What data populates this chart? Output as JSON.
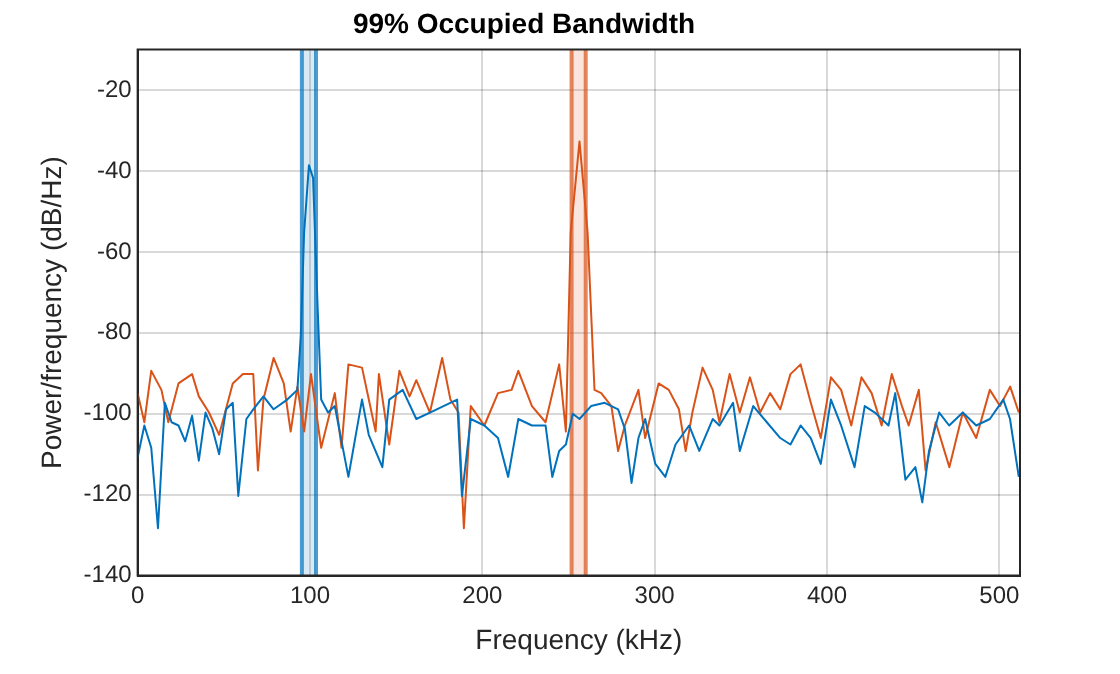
{
  "chart_data": {
    "type": "line",
    "title": "99% Occupied Bandwidth",
    "xlabel": "Frequency (kHz)",
    "ylabel": "Power/frequency (dB/Hz)",
    "xlim": [
      0,
      512
    ],
    "xticks": [
      0,
      100,
      200,
      300,
      400,
      500
    ],
    "ylim": [
      -140,
      -10
    ],
    "yticks": [
      -140,
      -120,
      -100,
      -80,
      -60,
      -40,
      -20
    ],
    "grid": true,
    "bands": [
      {
        "axis": "x",
        "from": 95.3,
        "to": 103.5,
        "color": "#0072bd"
      },
      {
        "axis": "x",
        "from": 251.8,
        "to": 260,
        "color": "#d95319"
      }
    ],
    "ref_lines": [
      {
        "axis": "x",
        "value": 95.3,
        "color": "#0072bd"
      },
      {
        "axis": "x",
        "value": 103.5,
        "color": "#0072bd"
      },
      {
        "axis": "x",
        "value": 251.8,
        "color": "#d95319"
      },
      {
        "axis": "x",
        "value": 260,
        "color": "#d95319"
      }
    ],
    "series": [
      {
        "color": "#0072bd",
        "x": [
          0,
          3.9,
          7.9,
          11.8,
          15.8,
          19.7,
          23.7,
          27.6,
          31.6,
          35.5,
          39.4,
          43.4,
          47.3,
          51.3,
          55.2,
          58.4,
          63.1,
          67.1,
          73,
          78.9,
          86.8,
          92.7,
          94.7,
          96.6,
          99.4,
          101.8,
          104.5,
          106.5,
          110.5,
          114.4,
          122.3,
          130.2,
          134.1,
          142,
          146,
          153.8,
          161.7,
          169.6,
          177.5,
          185.4,
          188.2,
          193.3,
          201.2,
          209.1,
          215,
          220.9,
          228.8,
          236.7,
          240.6,
          244.6,
          248.5,
          252.5,
          256.4,
          263.1,
          271,
          278.8,
          282.7,
          286.6,
          290.6,
          294.5,
          300.4,
          306.2,
          312.1,
          320,
          325.9,
          333.7,
          337.6,
          345.5,
          349.4,
          357.2,
          365.1,
          372.9,
          378.8,
          384.7,
          390.6,
          396.4,
          402.3,
          408.2,
          416,
          421.9,
          427.8,
          435.7,
          439.6,
          445.5,
          451.3,
          455.3,
          459.2,
          465.1,
          470.9,
          478.8,
          486.6,
          494.5,
          502.3,
          506.2,
          511.3
        ],
        "values": [
          -110.8,
          -102.9,
          -108.4,
          -128.3,
          -97.3,
          -102.1,
          -102.9,
          -106.8,
          -100.5,
          -111.6,
          -99.7,
          -103.7,
          -110,
          -98.9,
          -97.3,
          -120.3,
          -101.3,
          -98.9,
          -95.7,
          -98.9,
          -96.5,
          -94.1,
          -80.6,
          -55.2,
          -38.6,
          -41.7,
          -74.3,
          -96.5,
          -99.7,
          -98.1,
          -115.6,
          -96.5,
          -105.2,
          -113.2,
          -96.5,
          -94.1,
          -101.3,
          -99.7,
          -98.1,
          -96.5,
          -120.3,
          -101.3,
          -102.9,
          -106,
          -115.6,
          -101.3,
          -102.9,
          -102.9,
          -115.6,
          -109.2,
          -107.6,
          -100,
          -101.3,
          -98.1,
          -97.3,
          -98.9,
          -103.7,
          -117.1,
          -106,
          -101.3,
          -112.4,
          -115.6,
          -107.6,
          -102.9,
          -109.2,
          -101.3,
          -102.9,
          -97.3,
          -109.2,
          -98.1,
          -102.1,
          -106,
          -107.6,
          -102.9,
          -106,
          -112.4,
          -96.5,
          -102.9,
          -113.2,
          -98.1,
          -99.7,
          -102.9,
          -94.9,
          -116.3,
          -113.2,
          -121.9,
          -109.2,
          -99.7,
          -102.9,
          -99.7,
          -102.9,
          -101.3,
          -96.5,
          -101.3,
          -115.6
        ]
      },
      {
        "color": "#d95319",
        "x": [
          0,
          3.9,
          7.9,
          13.8,
          17.8,
          23.7,
          31.6,
          35.5,
          41.4,
          47.3,
          55.2,
          61.1,
          67.1,
          69.8,
          73,
          78.9,
          84.8,
          88.8,
          92.7,
          96.6,
          100.6,
          106.5,
          114.4,
          118.3,
          122.3,
          130.2,
          138.1,
          140,
          146,
          151.9,
          157.8,
          161.7,
          169.6,
          176.7,
          181.5,
          186.2,
          189.3,
          193.3,
          201.2,
          209.1,
          217,
          220.9,
          228.8,
          236.7,
          244.6,
          248.5,
          251.3,
          256.4,
          261.1,
          265.1,
          269,
          274.9,
          278.8,
          282.7,
          290.6,
          294.5,
          302.3,
          308.2,
          314.1,
          318,
          321.9,
          327.8,
          333.7,
          337.6,
          343.5,
          349.4,
          355.3,
          361.2,
          367,
          372.9,
          378.8,
          384.7,
          390.6,
          396.4,
          402.3,
          408.2,
          414.1,
          420,
          425.9,
          431.7,
          437.6,
          443.5,
          447.4,
          453.3,
          457.2,
          463.1,
          471,
          478.8,
          486.6,
          494.5,
          500.4,
          506.3,
          511.3
        ],
        "values": [
          -94.9,
          -102.1,
          -89.4,
          -94.1,
          -102.1,
          -92.5,
          -90.2,
          -95.7,
          -99.7,
          -105.2,
          -92.5,
          -90.2,
          -90.2,
          -114,
          -96.5,
          -86.2,
          -92.5,
          -104.4,
          -93.3,
          -104.4,
          -90.2,
          -108.4,
          -94.9,
          -108.4,
          -87.8,
          -88.6,
          -104.4,
          -90.2,
          -107.6,
          -89.4,
          -95.7,
          -91.7,
          -99.7,
          -86.2,
          -96.5,
          -99.7,
          -128.3,
          -98.1,
          -102.9,
          -94.9,
          -94.1,
          -89.4,
          -98.1,
          -102.1,
          -87.8,
          -104.4,
          -55.2,
          -32.7,
          -55.2,
          -94.1,
          -94.9,
          -98.1,
          -109.2,
          -102.9,
          -94.1,
          -106,
          -92.5,
          -94.1,
          -98.9,
          -109.2,
          -99.7,
          -88.6,
          -94.1,
          -102.1,
          -90.2,
          -99.7,
          -91,
          -99.7,
          -94.9,
          -98.9,
          -90.2,
          -87.8,
          -97.3,
          -106,
          -91,
          -94.1,
          -102.9,
          -91,
          -94.9,
          -102.9,
          -90.2,
          -98.1,
          -102.9,
          -94.1,
          -114,
          -102.1,
          -113.2,
          -99.7,
          -106,
          -94.1,
          -98.1,
          -93.3,
          -99.7
        ]
      }
    ]
  }
}
